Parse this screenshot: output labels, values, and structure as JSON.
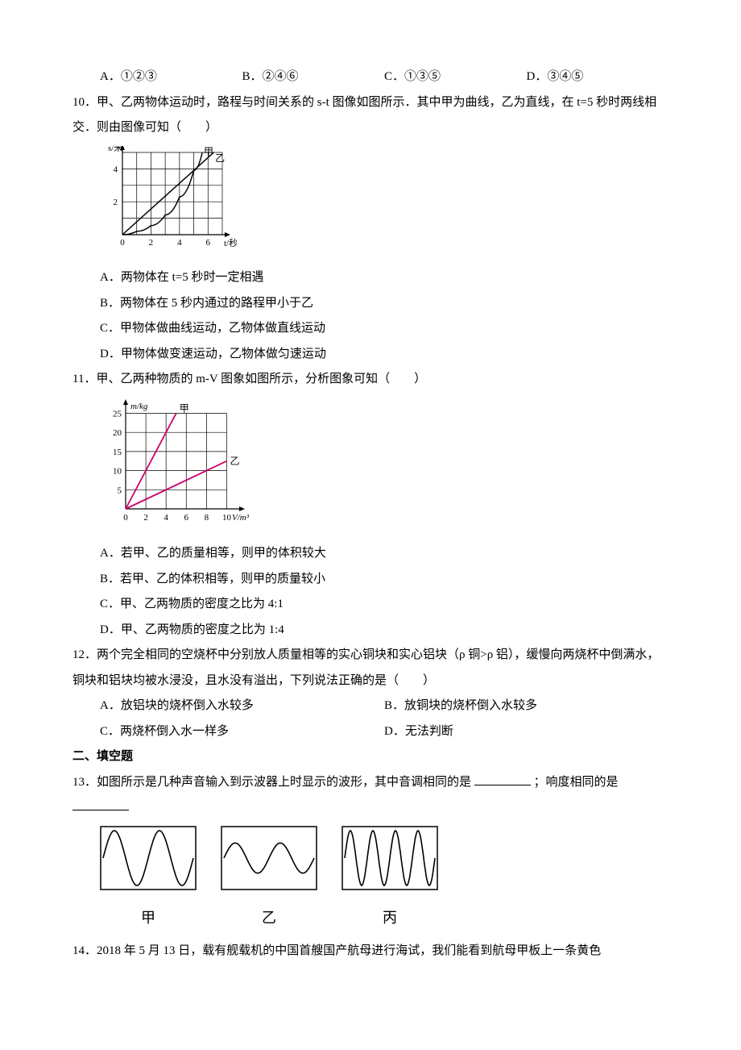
{
  "q9": {
    "A": "A．①②③",
    "B": "B．②④⑥",
    "C": "C．①③⑤",
    "D": "D．③④⑤"
  },
  "q10": {
    "stem": "10．甲、乙两物体运动时，路程与时间关系的 s-t 图像如图所示．其中甲为曲线，乙为直线，在 t=5 秒时两线相交．则由图像可知（　　）",
    "chart": {
      "type": "line",
      "x_label": "t/秒",
      "y_label": "s/米",
      "xlim": [
        0,
        7
      ],
      "ylim": [
        0,
        5
      ],
      "xtick_pos": [
        0,
        2,
        4,
        6
      ],
      "xtick_labels": [
        "0",
        "2",
        "4",
        "6"
      ],
      "ytick_pos": [
        2,
        4
      ],
      "ytick_labels": [
        "2",
        "4"
      ],
      "grid": true,
      "grid_color": "#000000",
      "bg": "#ffffff",
      "series": [
        {
          "name": "甲",
          "label": "甲",
          "color": "#000000",
          "width": 1.5,
          "type": "curve",
          "points": [
            [
              0,
              0
            ],
            [
              1,
              0.2
            ],
            [
              2,
              0.55
            ],
            [
              3,
              1.2
            ],
            [
              4,
              2.3
            ],
            [
              5,
              3.9
            ],
            [
              5.6,
              5
            ]
          ]
        },
        {
          "name": "乙",
          "label": "乙",
          "color": "#000000",
          "width": 1.5,
          "type": "line",
          "points": [
            [
              0,
              0
            ],
            [
              6.4,
              5
            ]
          ]
        }
      ]
    },
    "A": "A．两物体在 t=5 秒时一定相遇",
    "B": "B．两物体在 5 秒内通过的路程甲小于乙",
    "C": "C．甲物体做曲线运动，乙物体做直线运动",
    "D": "D．甲物体做变速运动，乙物体做匀速运动"
  },
  "q11": {
    "stem": "11．甲、乙两种物质的 m-V 图象如图所示，分析图象可知（　　）",
    "chart": {
      "type": "line",
      "x_label": "V/m³",
      "y_label": "m/kg",
      "xlim": [
        0,
        11
      ],
      "ylim": [
        0,
        27
      ],
      "xtick_pos": [
        0,
        2,
        4,
        6,
        8,
        10
      ],
      "xtick_labels": [
        "0",
        "2",
        "4",
        "6",
        "8",
        "10"
      ],
      "ytick_pos": [
        5,
        10,
        15,
        20,
        25
      ],
      "ytick_labels": [
        "5",
        "10",
        "15",
        "20",
        "25"
      ],
      "grid": true,
      "grid_color": "#000000",
      "bg": "#ffffff",
      "line_color": "#cc0066",
      "series": [
        {
          "name": "甲",
          "label": "甲",
          "color": "#cc0066",
          "width": 1.8,
          "points": [
            [
              0,
              0
            ],
            [
              5,
              25
            ]
          ]
        },
        {
          "name": "乙",
          "label": "乙",
          "color": "#cc0066",
          "width": 1.8,
          "points": [
            [
              0,
              0
            ],
            [
              10,
              12.5
            ]
          ]
        }
      ]
    },
    "A": "A．若甲、乙的质量相等，则甲的体积较大",
    "B": "B．若甲、乙的体积相等，则甲的质量较小",
    "C": "C．甲、乙两物质的密度之比为 4:1",
    "D": "D．甲、乙两物质的密度之比为 1:4"
  },
  "q12": {
    "stem": "12．两个完全相同的空烧杯中分别放人质量相等的实心铜块和实心铝块（ρ 铜>ρ 铝），缓慢向两烧杯中倒满水，铜块和铝块均被水浸没，且水没有溢出，下列说法正确的是（　　）",
    "A": "A．放铝块的烧杯倒入水较多",
    "B": "B．放铜块的烧杯倒入水较多",
    "C": "C．两烧杯倒入水一样多",
    "D": "D．无法判断"
  },
  "section2": "二、填空题",
  "q13": {
    "stem_a": "13．如图所示是几种声音输入到示波器上时显示的波形，其中音调相同的是 ",
    "stem_b": " ；响度相同的是 ",
    "waves": {
      "labels": [
        "甲",
        "乙",
        "丙"
      ],
      "box_color": "#000000",
      "wave_color": "#000000",
      "bg": "#ffffff",
      "items": [
        {
          "name": "甲",
          "periods": 2,
          "amplitude": 1.0
        },
        {
          "name": "乙",
          "periods": 2,
          "amplitude": 0.55
        },
        {
          "name": "丙",
          "periods": 4,
          "amplitude": 1.0
        }
      ]
    }
  },
  "q14": {
    "stem": "14．2018 年 5 月 13 日，载有舰载机的中国首艘国产航母进行海试，我们能看到航母甲板上一条黄色"
  }
}
